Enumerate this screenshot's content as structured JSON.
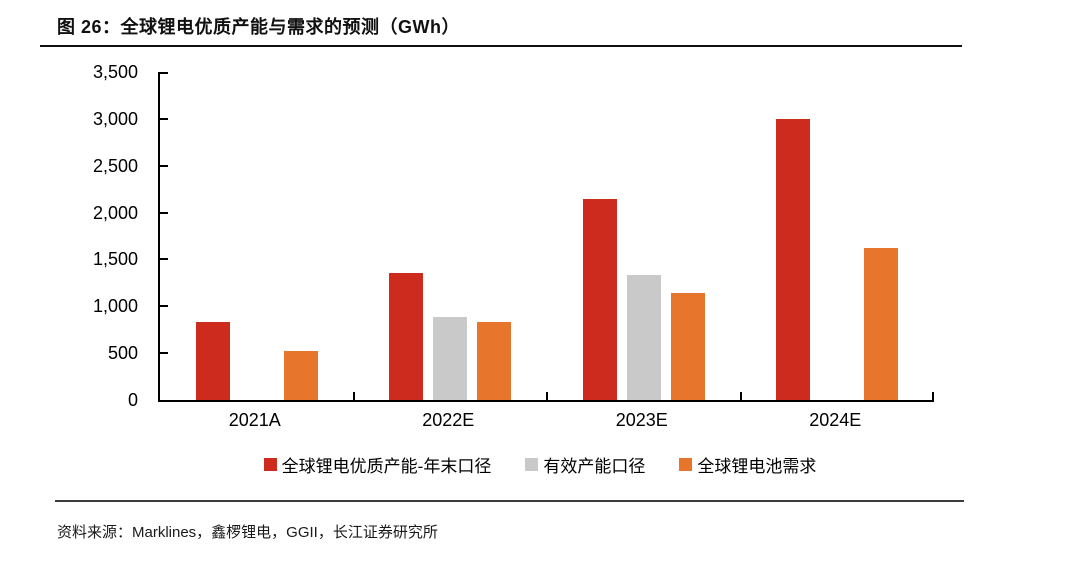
{
  "figure": {
    "title": "图 26：全球锂电优质产能与需求的预测（GWh）",
    "source": "资料来源：Marklines，鑫椤锂电，GGII，长江证券研究所"
  },
  "colors": {
    "capacity_red": "#CE2B1F",
    "effective_gray": "#C9C9C9",
    "demand_orange": "#E8752C",
    "axis_black": "#000000"
  },
  "chart_data": {
    "type": "bar",
    "title": "全球锂电优质产能与需求的预测（GWh）",
    "categories": [
      "2021A",
      "2022E",
      "2023E",
      "2024E"
    ],
    "series": [
      {
        "name": "全球锂电优质产能-年末口径",
        "color": "#CE2B1F",
        "values": [
          830,
          1360,
          2140,
          3000
        ]
      },
      {
        "name": "有效产能口径",
        "color": "#C9C9C9",
        "values": [
          null,
          890,
          1330,
          null
        ]
      },
      {
        "name": "全球锂电池需求",
        "color": "#E8752C",
        "values": [
          520,
          830,
          1140,
          1620
        ]
      }
    ],
    "xlabel": "",
    "ylabel": "",
    "ylim": [
      0,
      3500
    ],
    "ytick_step": 500,
    "ytick_labels": [
      "0",
      "500",
      "1,000",
      "1,500",
      "2,000",
      "2,500",
      "3,000",
      "3,500"
    ],
    "grid": false,
    "legend_position": "bottom"
  }
}
